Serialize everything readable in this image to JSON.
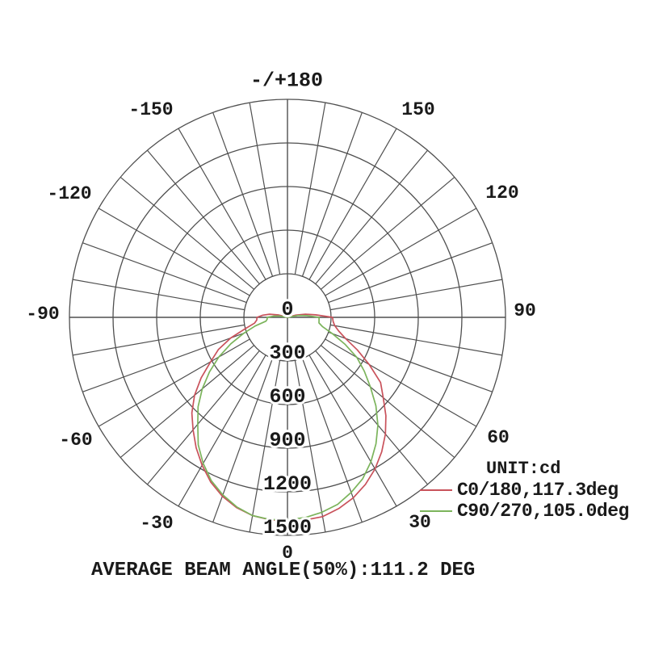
{
  "colors": {
    "background": "#ffffff",
    "grid": "#4f4f4f",
    "text": "#1a1a1a",
    "curve_c0_180": "#c9525b",
    "curve_c90_270": "#7cb45c"
  },
  "legend": {
    "unit_label": "UNIT:cd"
  },
  "chart_data": {
    "type": "polar",
    "subtype": "photometric-luminous-intensity-distribution",
    "title": "",
    "caption": "AVERAGE BEAM ANGLE(50%):111.2 DEG",
    "unit": "cd",
    "unit_label": "UNIT:cd",
    "angle_axis": {
      "zero_position": "bottom",
      "label_step_deg": 30,
      "spoke_step_deg": 10,
      "top_label": "-/+180",
      "angle_labels": [
        "-150",
        "-120",
        "-90",
        "-60",
        "-30",
        "0",
        "30",
        "60",
        "90",
        "120",
        "150"
      ]
    },
    "radial_axis": {
      "min": 0,
      "max": 1500,
      "step": 300,
      "tick_labels": [
        "0",
        "300",
        "600",
        "900",
        "1200",
        "1500"
      ]
    },
    "legend_position": "right-bottom",
    "grid": true,
    "series": [
      {
        "name": "C0/180,117.3deg",
        "plane": "C0/180",
        "beam_angle_deg": 117.3,
        "color": "#c9525b",
        "points": [
          [
            -110,
            0
          ],
          [
            -105,
            65
          ],
          [
            -100,
            125
          ],
          [
            -95,
            170
          ],
          [
            -90,
            210
          ],
          [
            -85,
            212
          ],
          [
            -80,
            230
          ],
          [
            -75,
            300
          ],
          [
            -70,
            415
          ],
          [
            -65,
            525
          ],
          [
            -60,
            610
          ],
          [
            -55,
            725
          ],
          [
            -50,
            835
          ],
          [
            -45,
            930
          ],
          [
            -40,
            1010
          ],
          [
            -35,
            1095
          ],
          [
            -30,
            1175
          ],
          [
            -25,
            1250
          ],
          [
            -20,
            1310
          ],
          [
            -15,
            1355
          ],
          [
            -10,
            1385
          ],
          [
            -5,
            1398
          ],
          [
            0,
            1405
          ],
          [
            5,
            1400
          ],
          [
            10,
            1392
          ],
          [
            15,
            1362
          ],
          [
            20,
            1322
          ],
          [
            25,
            1268
          ],
          [
            30,
            1205
          ],
          [
            35,
            1130
          ],
          [
            40,
            1048
          ],
          [
            45,
            958
          ],
          [
            50,
            860
          ],
          [
            55,
            782
          ],
          [
            60,
            650
          ],
          [
            65,
            530
          ],
          [
            70,
            425
          ],
          [
            75,
            365
          ],
          [
            80,
            330
          ],
          [
            85,
            315
          ],
          [
            90,
            310
          ],
          [
            95,
            195
          ],
          [
            100,
            125
          ],
          [
            105,
            60
          ],
          [
            110,
            0
          ]
        ]
      },
      {
        "name": "C90/270,105.0deg",
        "plane": "C90/270",
        "beam_angle_deg": 105.0,
        "color": "#7cb45c",
        "points": [
          [
            -105,
            0
          ],
          [
            -100,
            55
          ],
          [
            -95,
            95
          ],
          [
            -90,
            140
          ],
          [
            -85,
            140
          ],
          [
            -80,
            150
          ],
          [
            -75,
            230
          ],
          [
            -70,
            320
          ],
          [
            -65,
            430
          ],
          [
            -60,
            545
          ],
          [
            -55,
            655
          ],
          [
            -50,
            765
          ],
          [
            -45,
            870
          ],
          [
            -40,
            960
          ],
          [
            -35,
            1070
          ],
          [
            -30,
            1160
          ],
          [
            -25,
            1240
          ],
          [
            -20,
            1300
          ],
          [
            -15,
            1350
          ],
          [
            -10,
            1385
          ],
          [
            -5,
            1396
          ],
          [
            0,
            1392
          ],
          [
            5,
            1383
          ],
          [
            10,
            1362
          ],
          [
            15,
            1332
          ],
          [
            20,
            1282
          ],
          [
            25,
            1225
          ],
          [
            30,
            1148
          ],
          [
            35,
            1062
          ],
          [
            40,
            968
          ],
          [
            45,
            860
          ],
          [
            50,
            745
          ],
          [
            55,
            645
          ],
          [
            60,
            552
          ],
          [
            65,
            435
          ],
          [
            70,
            330
          ],
          [
            75,
            250
          ],
          [
            80,
            220
          ],
          [
            85,
            218
          ],
          [
            90,
            217
          ],
          [
            95,
            135
          ],
          [
            100,
            75
          ],
          [
            105,
            0
          ]
        ]
      }
    ]
  }
}
